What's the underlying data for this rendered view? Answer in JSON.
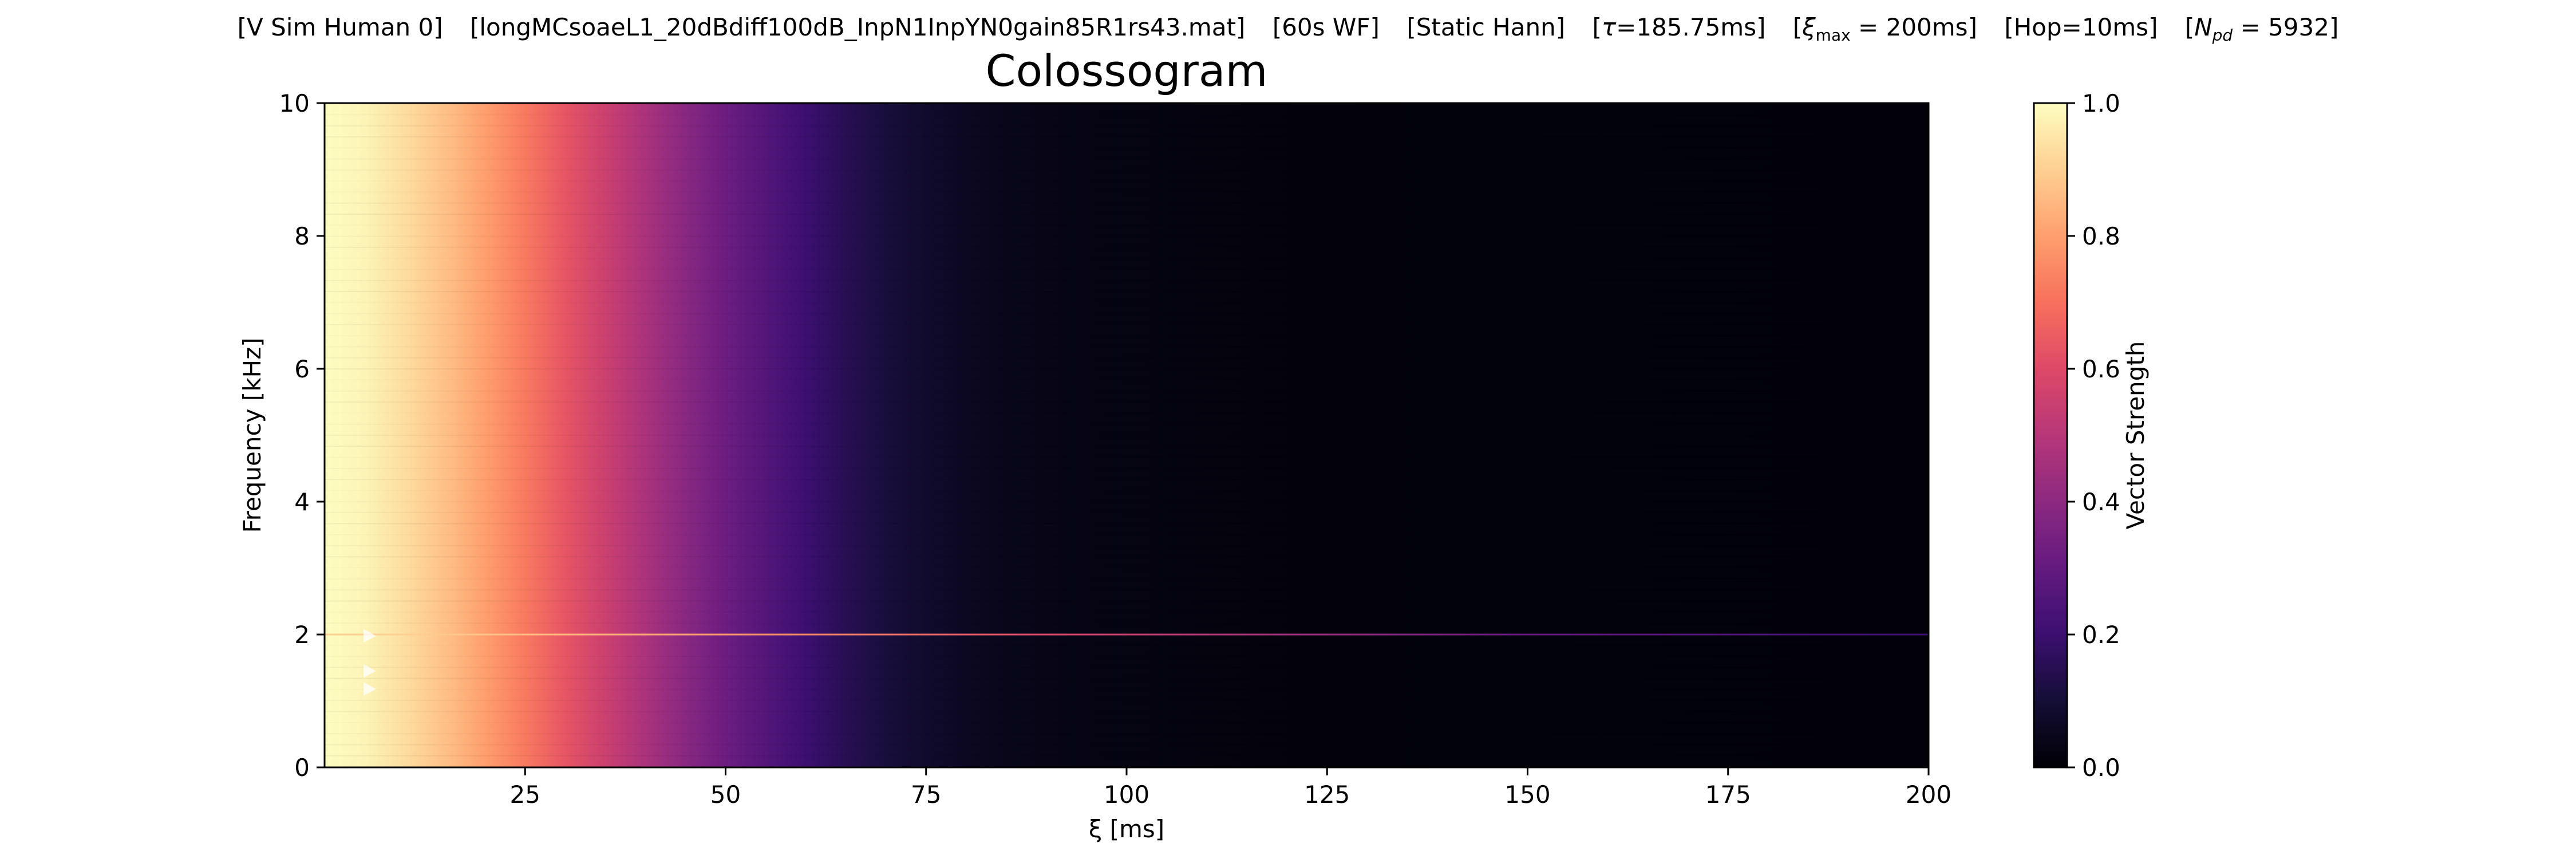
{
  "figure": {
    "suptitle": {
      "sim": "[V Sim Human 0]",
      "file": "[longMCsoaeL1_20dBdiff100dB_InpN1InpYN0gain85R1rs43.mat]",
      "wf": "[60s WF]",
      "window": "[Static Hann]",
      "tau": "185.75ms",
      "xi_max": "200ms",
      "hop": "[Hop=10ms]",
      "n_pd": "5932"
    }
  },
  "chart_data": {
    "type": "heatmap",
    "title": "Colossogram",
    "xlabel": "ξ [ms]",
    "ylabel": "Frequency [kHz]",
    "xlim": [
      0,
      200
    ],
    "ylim": [
      0,
      10
    ],
    "xticks": [
      25,
      50,
      75,
      100,
      125,
      150,
      175,
      200
    ],
    "yticks": [
      0,
      2,
      4,
      6,
      8,
      10
    ],
    "grid": false,
    "colormap": "magma",
    "colorbar": {
      "label": "Vector Strength",
      "range": [
        0,
        1
      ],
      "ticks": [
        0.0,
        0.2,
        0.4,
        0.6,
        0.8,
        1.0
      ],
      "tick_labels": [
        "0.0",
        "0.2",
        "0.4",
        "0.6",
        "0.8",
        "1.0"
      ]
    },
    "colormap_stops": [
      {
        "v": 0.0,
        "color": "#000004"
      },
      {
        "v": 0.1,
        "color": "#140e36"
      },
      {
        "v": 0.2,
        "color": "#3b0f70"
      },
      {
        "v": 0.3,
        "color": "#641a80"
      },
      {
        "v": 0.4,
        "color": "#8c2981"
      },
      {
        "v": 0.5,
        "color": "#b73779"
      },
      {
        "v": 0.6,
        "color": "#de4968"
      },
      {
        "v": 0.7,
        "color": "#f7705c"
      },
      {
        "v": 0.8,
        "color": "#fe9f6d"
      },
      {
        "v": 0.9,
        "color": "#fecf92"
      },
      {
        "v": 1.0,
        "color": "#fcfdbf"
      }
    ],
    "profile_vs_xi": {
      "xi_ms": [
        0,
        5,
        10,
        15,
        20,
        25,
        30,
        35,
        40,
        45,
        50,
        55,
        60,
        65,
        70,
        75,
        80,
        85,
        90,
        100,
        110,
        125,
        150,
        200
      ],
      "vector_strength": [
        1.0,
        0.98,
        0.93,
        0.87,
        0.8,
        0.72,
        0.63,
        0.55,
        0.47,
        0.39,
        0.32,
        0.26,
        0.2,
        0.15,
        0.11,
        0.08,
        0.06,
        0.045,
        0.035,
        0.025,
        0.02,
        0.015,
        0.012,
        0.01
      ]
    },
    "tonal_line": {
      "frequency_khz": 2.0,
      "vector_strength": [
        0.9,
        0.85,
        0.75,
        0.6,
        0.45,
        0.3,
        0.2
      ],
      "xi_ms": [
        10,
        30,
        60,
        90,
        120,
        150,
        200
      ]
    },
    "markers": [
      {
        "xi_ms": 5,
        "frequency_khz": 1.98
      },
      {
        "xi_ms": 5,
        "frequency_khz": 1.45
      },
      {
        "xi_ms": 5,
        "frequency_khz": 1.18
      }
    ]
  }
}
